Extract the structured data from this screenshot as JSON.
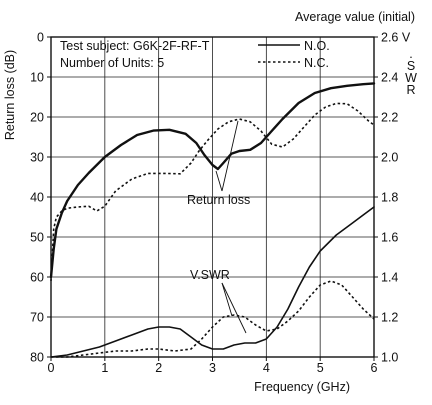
{
  "chart_data": {
    "type": "line",
    "title": "Average value (initial)",
    "xlabel": "Frequency (GHz)",
    "ylabel_left": "Return loss (dB)",
    "ylabel_right": "V.SWR",
    "xlim": [
      0,
      6
    ],
    "ylim_left": [
      0,
      80
    ],
    "ylim_left_inverted": true,
    "ylim_right": [
      1.0,
      2.6
    ],
    "x_ticks": [
      "0",
      "1",
      "2",
      "3",
      "4",
      "5",
      "6"
    ],
    "y_left_ticks": [
      "0",
      "10",
      "20",
      "30",
      "40",
      "50",
      "60",
      "70",
      "80"
    ],
    "y_right_ticks": [
      "1.0",
      "1.2",
      "1.4",
      "1.6",
      "1.8",
      "2.0",
      "2.2",
      "2.4",
      "2.6 V"
    ],
    "grid": true,
    "info_lines": [
      "Test subject: G6K-2F-RF-T",
      "Number of Units: 5"
    ],
    "legend": [
      {
        "name": "N.O.",
        "style": "solid"
      },
      {
        "name": "N.C.",
        "style": "dotted"
      }
    ],
    "annotations": [
      "Return loss",
      "V.SWR"
    ],
    "series": [
      {
        "name": "N.O.",
        "curve": "Return loss",
        "axis": "left",
        "style": "solid",
        "x": [
          0,
          0.05,
          0.1,
          0.2,
          0.3,
          0.5,
          0.7,
          1.0,
          1.3,
          1.6,
          1.9,
          2.2,
          2.5,
          2.7,
          2.85,
          3.0,
          3.1,
          3.2,
          3.35,
          3.5,
          3.7,
          3.9,
          4.1,
          4.3,
          4.6,
          4.9,
          5.2,
          5.5,
          5.8,
          6.0
        ],
        "values": [
          60,
          53,
          48,
          44,
          41,
          37,
          34,
          30,
          27,
          24.5,
          23.4,
          23.2,
          24.2,
          26.5,
          29.5,
          32,
          33,
          31.5,
          29.2,
          28.5,
          28.2,
          26.5,
          23.5,
          20.5,
          16.5,
          14,
          12.8,
          12.2,
          11.8,
          11.6
        ]
      },
      {
        "name": "N.C.",
        "curve": "Return loss",
        "axis": "left",
        "style": "dotted",
        "x": [
          0,
          0.05,
          0.1,
          0.2,
          0.3,
          0.5,
          0.7,
          0.85,
          1.0,
          1.2,
          1.5,
          1.8,
          2.1,
          2.4,
          2.6,
          2.75,
          2.9,
          3.1,
          3.3,
          3.5,
          3.7,
          3.9,
          4.1,
          4.3,
          4.5,
          4.7,
          4.9,
          5.1,
          5.3,
          5.5,
          5.7,
          5.9,
          6.0
        ],
        "values": [
          61,
          48,
          45,
          43.5,
          42.8,
          42.5,
          42.3,
          43.5,
          42.3,
          38.5,
          35.5,
          34.1,
          34.1,
          34.2,
          31.5,
          28.5,
          26,
          23,
          21.2,
          20.5,
          21.2,
          23.5,
          26.8,
          27.5,
          25.5,
          22.5,
          19.5,
          17.5,
          16.6,
          16.7,
          18.5,
          21,
          22
        ]
      },
      {
        "name": "N.O.",
        "curve": "V.SWR",
        "axis": "right",
        "style": "solid",
        "x": [
          0,
          0.3,
          0.6,
          0.9,
          1.2,
          1.5,
          1.8,
          2.0,
          2.2,
          2.4,
          2.6,
          2.8,
          3.0,
          3.2,
          3.4,
          3.6,
          3.8,
          4.0,
          4.2,
          4.4,
          4.6,
          4.8,
          5.0,
          5.3,
          5.6,
          5.8,
          6.0
        ],
        "values": [
          1.0,
          1.01,
          1.03,
          1.05,
          1.08,
          1.11,
          1.14,
          1.15,
          1.15,
          1.14,
          1.1,
          1.06,
          1.04,
          1.04,
          1.06,
          1.07,
          1.07,
          1.09,
          1.15,
          1.24,
          1.35,
          1.45,
          1.53,
          1.61,
          1.67,
          1.71,
          1.75
        ]
      },
      {
        "name": "N.C.",
        "curve": "V.SWR",
        "axis": "right",
        "style": "dotted",
        "x": [
          0,
          0.3,
          0.6,
          0.9,
          1.2,
          1.5,
          1.8,
          2.0,
          2.3,
          2.6,
          2.8,
          3.0,
          3.2,
          3.4,
          3.6,
          3.8,
          4.0,
          4.2,
          4.4,
          4.6,
          4.8,
          5.0,
          5.2,
          5.4,
          5.6,
          5.8,
          6.0
        ],
        "values": [
          1.0,
          1.0,
          1.01,
          1.02,
          1.03,
          1.03,
          1.04,
          1.04,
          1.03,
          1.04,
          1.09,
          1.15,
          1.2,
          1.21,
          1.2,
          1.16,
          1.13,
          1.14,
          1.18,
          1.23,
          1.3,
          1.36,
          1.38,
          1.36,
          1.3,
          1.24,
          1.19
        ]
      }
    ]
  }
}
